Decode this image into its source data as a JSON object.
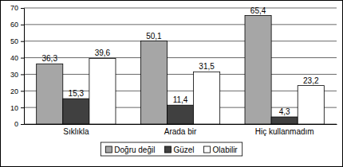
{
  "chart_data": {
    "type": "bar",
    "categories": [
      "Sıklıkla",
      "Arada bir",
      "Hiç kullanmadım"
    ],
    "series": [
      {
        "name": "Doğru değil",
        "color": "#a6a6a6",
        "values": [
          36.3,
          50.1,
          65.4
        ],
        "value_labels": [
          "36,3",
          "50,1",
          "65,4"
        ]
      },
      {
        "name": "Güzel",
        "color": "#404040",
        "values": [
          15.3,
          11.4,
          4.3
        ],
        "value_labels": [
          "15,3",
          "11,4",
          "4,3"
        ]
      },
      {
        "name": "Olabilir",
        "color": "#ffffff",
        "values": [
          39.6,
          31.5,
          23.2
        ],
        "value_labels": [
          "39,6",
          "31,5",
          "23,2"
        ]
      }
    ],
    "ylim": [
      0,
      70
    ],
    "yticks": [
      0,
      10,
      20,
      30,
      40,
      50,
      60,
      70
    ],
    "grid": true,
    "legend": "bottom",
    "data_labels": true
  }
}
